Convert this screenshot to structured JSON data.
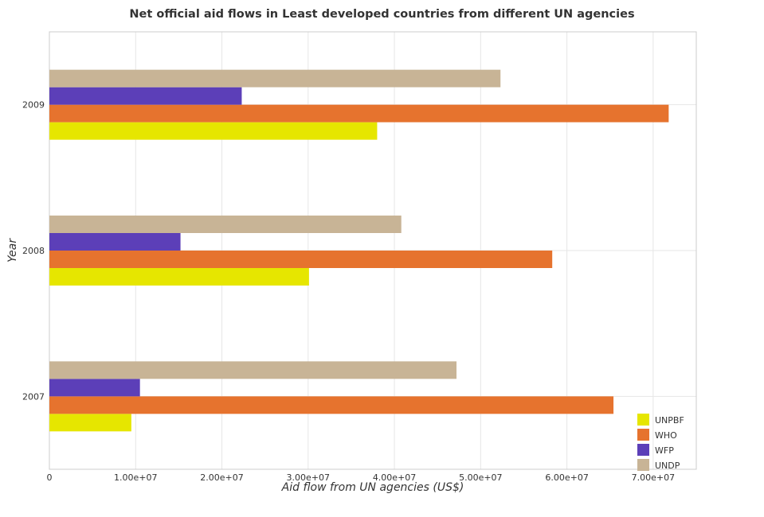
{
  "chart_data": {
    "type": "bar",
    "orientation": "horizontal",
    "title": "Net official aid flows in Least developed countries from different UN agencies",
    "xlabel": "Aid flow from UN agencies (US$)",
    "ylabel": "Year",
    "categories": [
      "2007",
      "2008",
      "2009"
    ],
    "series": [
      {
        "name": "UNPBF",
        "color": "#e6e600",
        "values": [
          9500000,
          30100000,
          38000000
        ]
      },
      {
        "name": "WHO",
        "color": "#e6732e",
        "values": [
          65400000,
          58300000,
          71800000
        ]
      },
      {
        "name": "WFP",
        "color": "#5c3fb8",
        "values": [
          10500000,
          15200000,
          22300000
        ]
      },
      {
        "name": "UNDP",
        "color": "#c8b496",
        "values": [
          47200000,
          40800000,
          52300000
        ]
      }
    ],
    "xlim": [
      0,
      75000000
    ],
    "xticks": [
      0,
      10000000,
      20000000,
      30000000,
      40000000,
      50000000,
      60000000,
      70000000
    ],
    "xtick_labels": [
      "0",
      "1.00e+07",
      "2.00e+07",
      "3.00e+07",
      "4.00e+07",
      "5.00e+07",
      "6.00e+07",
      "7.00e+07"
    ],
    "grid": true,
    "legend_position": "bottom-right"
  }
}
